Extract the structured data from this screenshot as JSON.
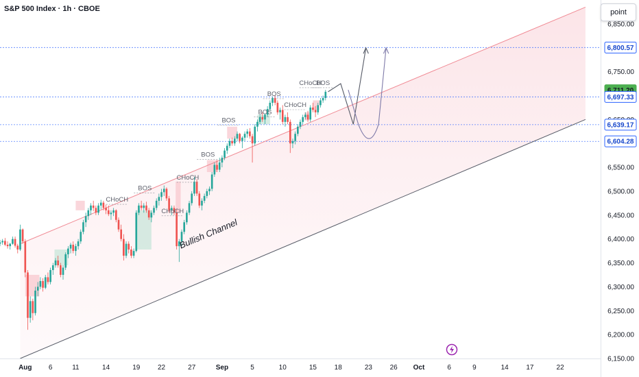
{
  "header": {
    "title": "S&P 500 Index · 1h · CBOE",
    "point_button": "point"
  },
  "chart_data": {
    "type": "candlestick",
    "symbol": "S&P 500 Index",
    "interval": "1h",
    "exchange": "CBOE",
    "ylim": [
      6150,
      6900
    ],
    "y_ticks": [
      6150,
      6200,
      6250,
      6300,
      6350,
      6400,
      6450,
      6500,
      6550,
      6600,
      6650,
      6700,
      6750,
      6800,
      6850
    ],
    "y_tick_labels": [
      "6,150.00",
      "6,200.00",
      "6,250.00",
      "6,300.00",
      "6,350.00",
      "6,400.00",
      "6,450.00",
      "6,500.00",
      "6,550.00",
      "6,600.00",
      "6,650.00",
      "6,700.00",
      "6,750.00",
      "6,800.00",
      "6,850.00"
    ],
    "x_range": [
      -5,
      114
    ],
    "x_ticks": [
      {
        "label": "Aug",
        "x": 0,
        "bold": true
      },
      {
        "label": "6",
        "x": 5
      },
      {
        "label": "11",
        "x": 10
      },
      {
        "label": "14",
        "x": 16
      },
      {
        "label": "19",
        "x": 22
      },
      {
        "label": "22",
        "x": 27
      },
      {
        "label": "27",
        "x": 33
      },
      {
        "label": "Sep",
        "x": 39,
        "bold": true
      },
      {
        "label": "5",
        "x": 45
      },
      {
        "label": "10",
        "x": 51
      },
      {
        "label": "15",
        "x": 57
      },
      {
        "label": "18",
        "x": 62
      },
      {
        "label": "23",
        "x": 68
      },
      {
        "label": "26",
        "x": 73
      },
      {
        "label": "Oct",
        "x": 78,
        "bold": true
      },
      {
        "label": "6",
        "x": 84
      },
      {
        "label": "9",
        "x": 89
      },
      {
        "label": "14",
        "x": 95
      },
      {
        "label": "17",
        "x": 100
      },
      {
        "label": "22",
        "x": 106
      }
    ],
    "price_levels": [
      {
        "label": "6,800.57",
        "value": 6800.57,
        "color": "#2962ff"
      },
      {
        "label": "6,711.20",
        "value": 6711.2,
        "color": "#4caf50"
      },
      {
        "label": "6,697.33",
        "value": 6697.33,
        "color": "#2962ff"
      },
      {
        "label": "6,639.17",
        "value": 6639.17,
        "color": "#2962ff"
      },
      {
        "label": "6,604.28",
        "value": 6604.28,
        "color": "#2962ff"
      }
    ],
    "candles": [
      [
        -5,
        6390,
        6398,
        6385,
        6393
      ],
      [
        -4.5,
        6393,
        6400,
        6388,
        6396
      ],
      [
        -4,
        6396,
        6402,
        6385,
        6388
      ],
      [
        -3.5,
        6388,
        6395,
        6380,
        6385
      ],
      [
        -3,
        6385,
        6392,
        6378,
        6390
      ],
      [
        -2.5,
        6390,
        6405,
        6388,
        6400
      ],
      [
        -2,
        6400,
        6405,
        6382,
        6386
      ],
      [
        -1.5,
        6386,
        6390,
        6370,
        6378
      ],
      [
        -1,
        6378,
        6430,
        6375,
        6420
      ],
      [
        -0.5,
        6420,
        6422,
        6390,
        6395
      ],
      [
        0,
        6395,
        6400,
        6320,
        6330
      ],
      [
        0.5,
        6330,
        6335,
        6210,
        6235
      ],
      [
        1,
        6235,
        6280,
        6225,
        6270
      ],
      [
        1.5,
        6270,
        6275,
        6230,
        6245
      ],
      [
        2,
        6245,
        6300,
        6240,
        6292
      ],
      [
        2.5,
        6292,
        6310,
        6280,
        6300
      ],
      [
        3,
        6300,
        6320,
        6295,
        6312
      ],
      [
        3.5,
        6312,
        6318,
        6290,
        6298
      ],
      [
        4,
        6298,
        6325,
        6295,
        6320
      ],
      [
        4.5,
        6320,
        6330,
        6305,
        6310
      ],
      [
        5,
        6310,
        6340,
        6305,
        6335
      ],
      [
        5.5,
        6335,
        6350,
        6325,
        6345
      ],
      [
        6,
        6345,
        6360,
        6340,
        6355
      ],
      [
        6.5,
        6355,
        6365,
        6340,
        6345
      ],
      [
        7,
        6345,
        6350,
        6320,
        6325
      ],
      [
        7.5,
        6325,
        6345,
        6315,
        6340
      ],
      [
        8,
        6340,
        6372,
        6335,
        6368
      ],
      [
        8.5,
        6368,
        6385,
        6360,
        6380
      ],
      [
        9,
        6380,
        6392,
        6370,
        6388
      ],
      [
        9.5,
        6388,
        6395,
        6370,
        6375
      ],
      [
        10,
        6375,
        6390,
        6365,
        6385
      ],
      [
        10.5,
        6385,
        6400,
        6378,
        6395
      ],
      [
        11,
        6395,
        6420,
        6390,
        6415
      ],
      [
        11.5,
        6415,
        6440,
        6410,
        6435
      ],
      [
        12,
        6435,
        6455,
        6425,
        6448
      ],
      [
        12.5,
        6448,
        6465,
        6440,
        6460
      ],
      [
        13,
        6460,
        6475,
        6450,
        6470
      ],
      [
        13.5,
        6470,
        6480,
        6458,
        6465
      ],
      [
        14,
        6465,
        6470,
        6450,
        6455
      ],
      [
        14.5,
        6455,
        6475,
        6450,
        6470
      ],
      [
        15,
        6470,
        6482,
        6462,
        6476
      ],
      [
        15.5,
        6476,
        6480,
        6460,
        6465
      ],
      [
        16,
        6465,
        6472,
        6452,
        6460
      ],
      [
        16.5,
        6460,
        6470,
        6448,
        6452
      ],
      [
        17,
        6452,
        6460,
        6440,
        6455
      ],
      [
        17.5,
        6455,
        6465,
        6448,
        6460
      ],
      [
        18,
        6460,
        6462,
        6435,
        6440
      ],
      [
        18.5,
        6440,
        6445,
        6415,
        6420
      ],
      [
        19,
        6420,
        6430,
        6395,
        6400
      ],
      [
        19.5,
        6400,
        6410,
        6355,
        6365
      ],
      [
        20,
        6365,
        6395,
        6360,
        6390
      ],
      [
        20.5,
        6390,
        6395,
        6370,
        6378
      ],
      [
        21,
        6378,
        6385,
        6360,
        6365
      ],
      [
        21.5,
        6365,
        6380,
        6360,
        6375
      ],
      [
        22,
        6375,
        6460,
        6372,
        6455
      ],
      [
        22.5,
        6455,
        6475,
        6450,
        6470
      ],
      [
        23,
        6470,
        6480,
        6460,
        6465
      ],
      [
        23.5,
        6465,
        6475,
        6455,
        6470
      ],
      [
        24,
        6470,
        6478,
        6455,
        6460
      ],
      [
        24.5,
        6460,
        6465,
        6440,
        6445
      ],
      [
        25,
        6445,
        6460,
        6435,
        6455
      ],
      [
        25.5,
        6455,
        6470,
        6450,
        6465
      ],
      [
        26,
        6465,
        6485,
        6460,
        6480
      ],
      [
        26.5,
        6480,
        6495,
        6470,
        6488
      ],
      [
        27,
        6488,
        6505,
        6480,
        6498
      ],
      [
        27.5,
        6498,
        6512,
        6490,
        6505
      ],
      [
        28,
        6505,
        6508,
        6480,
        6485
      ],
      [
        28.5,
        6485,
        6490,
        6455,
        6460
      ],
      [
        29,
        6460,
        6470,
        6450,
        6465
      ],
      [
        29.5,
        6465,
        6470,
        6450,
        6455
      ],
      [
        30,
        6455,
        6462,
        6378,
        6385
      ],
      [
        30.5,
        6385,
        6400,
        6352,
        6395
      ],
      [
        31,
        6395,
        6420,
        6385,
        6415
      ],
      [
        31.5,
        6415,
        6440,
        6410,
        6435
      ],
      [
        32,
        6435,
        6460,
        6430,
        6455
      ],
      [
        32.5,
        6455,
        6480,
        6450,
        6475
      ],
      [
        33,
        6475,
        6500,
        6470,
        6495
      ],
      [
        33.5,
        6495,
        6530,
        6490,
        6520
      ],
      [
        34,
        6520,
        6525,
        6490,
        6495
      ],
      [
        34.5,
        6495,
        6500,
        6465,
        6470
      ],
      [
        35,
        6470,
        6485,
        6460,
        6480
      ],
      [
        35.5,
        6480,
        6495,
        6475,
        6490
      ],
      [
        36,
        6490,
        6505,
        6485,
        6500
      ],
      [
        36.5,
        6500,
        6510,
        6492,
        6505
      ],
      [
        37,
        6505,
        6540,
        6500,
        6535
      ],
      [
        37.5,
        6535,
        6560,
        6530,
        6555
      ],
      [
        38,
        6555,
        6565,
        6540,
        6545
      ],
      [
        38.5,
        6545,
        6570,
        6540,
        6560
      ],
      [
        39,
        6560,
        6575,
        6550,
        6570
      ],
      [
        39.5,
        6570,
        6590,
        6565,
        6585
      ],
      [
        40,
        6585,
        6600,
        6578,
        6595
      ],
      [
        40.5,
        6595,
        6610,
        6590,
        6605
      ],
      [
        41,
        6605,
        6612,
        6595,
        6600
      ],
      [
        41.5,
        6600,
        6615,
        6595,
        6610
      ],
      [
        42,
        6610,
        6625,
        6605,
        6620
      ],
      [
        42.5,
        6620,
        6622,
        6600,
        6605
      ],
      [
        43,
        6605,
        6615,
        6590,
        6612
      ],
      [
        43.5,
        6612,
        6625,
        6605,
        6620
      ],
      [
        44,
        6620,
        6630,
        6612,
        6625
      ],
      [
        44.5,
        6625,
        6632,
        6610,
        6615
      ],
      [
        45,
        6615,
        6620,
        6560,
        6600
      ],
      [
        45.5,
        6600,
        6640,
        6595,
        6635
      ],
      [
        46,
        6635,
        6650,
        6625,
        6645
      ],
      [
        46.5,
        6645,
        6660,
        6640,
        6655
      ],
      [
        47,
        6655,
        6665,
        6645,
        6650
      ],
      [
        47.5,
        6650,
        6662,
        6640,
        6660
      ],
      [
        48,
        6660,
        6678,
        6655,
        6672
      ],
      [
        48.5,
        6672,
        6690,
        6668,
        6685
      ],
      [
        49,
        6685,
        6698,
        6678,
        6695
      ],
      [
        49.5,
        6695,
        6700,
        6680,
        6685
      ],
      [
        50,
        6685,
        6690,
        6660,
        6665
      ],
      [
        50.5,
        6665,
        6675,
        6650,
        6670
      ],
      [
        51,
        6670,
        6680,
        6640,
        6645
      ],
      [
        51.5,
        6645,
        6660,
        6635,
        6655
      ],
      [
        52,
        6655,
        6665,
        6640,
        6645
      ],
      [
        52.5,
        6645,
        6650,
        6580,
        6600
      ],
      [
        53,
        6600,
        6610,
        6590,
        6605
      ],
      [
        53.5,
        6605,
        6625,
        6598,
        6620
      ],
      [
        54,
        6620,
        6640,
        6615,
        6635
      ],
      [
        54.5,
        6635,
        6650,
        6630,
        6645
      ],
      [
        55,
        6645,
        6660,
        6640,
        6655
      ],
      [
        55.5,
        6655,
        6665,
        6650,
        6660
      ],
      [
        56,
        6660,
        6668,
        6645,
        6650
      ],
      [
        56.5,
        6650,
        6680,
        6645,
        6675
      ],
      [
        57,
        6675,
        6685,
        6665,
        6670
      ],
      [
        57.5,
        6670,
        6678,
        6655,
        6665
      ],
      [
        58,
        6665,
        6685,
        6660,
        6680
      ],
      [
        58.5,
        6680,
        6695,
        6675,
        6690
      ],
      [
        59,
        6690,
        6700,
        6685,
        6695
      ],
      [
        59.5,
        6695,
        6712,
        6690,
        6708
      ]
    ],
    "channel": {
      "label": "Bullish Channel",
      "upper": [
        [
          -1,
          6390
        ],
        [
          111,
          6885
        ]
      ],
      "lower": [
        [
          -1,
          6150
        ],
        [
          111,
          6650
        ]
      ]
    },
    "annotations": [
      {
        "text": "CHoCH",
        "x": 18.2,
        "y": 6474
      },
      {
        "text": "BOS",
        "x": 23.7,
        "y": 6498
      },
      {
        "text": "CHoCH",
        "x": 29.2,
        "y": 6450
      },
      {
        "text": "CHoCH",
        "x": 32.2,
        "y": 6520
      },
      {
        "text": "BOS",
        "x": 36.2,
        "y": 6568
      },
      {
        "text": "BOS",
        "x": 40.3,
        "y": 6640
      },
      {
        "text": "BOS",
        "x": 47.5,
        "y": 6657
      },
      {
        "text": "BOS",
        "x": 49.3,
        "y": 6695
      },
      {
        "text": "CHoCH",
        "x": 53.5,
        "y": 6672
      },
      {
        "text": "CHoCH",
        "x": 56.5,
        "y": 6718
      },
      {
        "text": "BOS",
        "x": 59,
        "y": 6718
      }
    ]
  }
}
